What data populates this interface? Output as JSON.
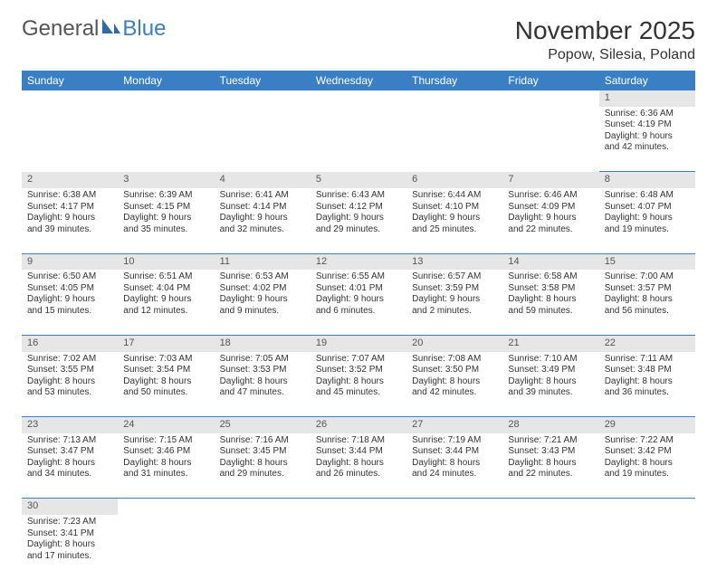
{
  "logo": {
    "part1": "General",
    "part2": "Blue"
  },
  "title": "November 2025",
  "location": "Popow, Silesia, Poland",
  "header_color": "#3a7fc4",
  "daynum_bg": "#e6e6e6",
  "days": [
    "Sunday",
    "Monday",
    "Tuesday",
    "Wednesday",
    "Thursday",
    "Friday",
    "Saturday"
  ],
  "weeks": [
    [
      null,
      null,
      null,
      null,
      null,
      null,
      {
        "d": "1",
        "sr": "Sunrise: 6:36 AM",
        "ss": "Sunset: 4:19 PM",
        "dl1": "Daylight: 9 hours",
        "dl2": "and 42 minutes."
      }
    ],
    [
      {
        "d": "2",
        "sr": "Sunrise: 6:38 AM",
        "ss": "Sunset: 4:17 PM",
        "dl1": "Daylight: 9 hours",
        "dl2": "and 39 minutes."
      },
      {
        "d": "3",
        "sr": "Sunrise: 6:39 AM",
        "ss": "Sunset: 4:15 PM",
        "dl1": "Daylight: 9 hours",
        "dl2": "and 35 minutes."
      },
      {
        "d": "4",
        "sr": "Sunrise: 6:41 AM",
        "ss": "Sunset: 4:14 PM",
        "dl1": "Daylight: 9 hours",
        "dl2": "and 32 minutes."
      },
      {
        "d": "5",
        "sr": "Sunrise: 6:43 AM",
        "ss": "Sunset: 4:12 PM",
        "dl1": "Daylight: 9 hours",
        "dl2": "and 29 minutes."
      },
      {
        "d": "6",
        "sr": "Sunrise: 6:44 AM",
        "ss": "Sunset: 4:10 PM",
        "dl1": "Daylight: 9 hours",
        "dl2": "and 25 minutes."
      },
      {
        "d": "7",
        "sr": "Sunrise: 6:46 AM",
        "ss": "Sunset: 4:09 PM",
        "dl1": "Daylight: 9 hours",
        "dl2": "and 22 minutes."
      },
      {
        "d": "8",
        "sr": "Sunrise: 6:48 AM",
        "ss": "Sunset: 4:07 PM",
        "dl1": "Daylight: 9 hours",
        "dl2": "and 19 minutes."
      }
    ],
    [
      {
        "d": "9",
        "sr": "Sunrise: 6:50 AM",
        "ss": "Sunset: 4:05 PM",
        "dl1": "Daylight: 9 hours",
        "dl2": "and 15 minutes."
      },
      {
        "d": "10",
        "sr": "Sunrise: 6:51 AM",
        "ss": "Sunset: 4:04 PM",
        "dl1": "Daylight: 9 hours",
        "dl2": "and 12 minutes."
      },
      {
        "d": "11",
        "sr": "Sunrise: 6:53 AM",
        "ss": "Sunset: 4:02 PM",
        "dl1": "Daylight: 9 hours",
        "dl2": "and 9 minutes."
      },
      {
        "d": "12",
        "sr": "Sunrise: 6:55 AM",
        "ss": "Sunset: 4:01 PM",
        "dl1": "Daylight: 9 hours",
        "dl2": "and 6 minutes."
      },
      {
        "d": "13",
        "sr": "Sunrise: 6:57 AM",
        "ss": "Sunset: 3:59 PM",
        "dl1": "Daylight: 9 hours",
        "dl2": "and 2 minutes."
      },
      {
        "d": "14",
        "sr": "Sunrise: 6:58 AM",
        "ss": "Sunset: 3:58 PM",
        "dl1": "Daylight: 8 hours",
        "dl2": "and 59 minutes."
      },
      {
        "d": "15",
        "sr": "Sunrise: 7:00 AM",
        "ss": "Sunset: 3:57 PM",
        "dl1": "Daylight: 8 hours",
        "dl2": "and 56 minutes."
      }
    ],
    [
      {
        "d": "16",
        "sr": "Sunrise: 7:02 AM",
        "ss": "Sunset: 3:55 PM",
        "dl1": "Daylight: 8 hours",
        "dl2": "and 53 minutes."
      },
      {
        "d": "17",
        "sr": "Sunrise: 7:03 AM",
        "ss": "Sunset: 3:54 PM",
        "dl1": "Daylight: 8 hours",
        "dl2": "and 50 minutes."
      },
      {
        "d": "18",
        "sr": "Sunrise: 7:05 AM",
        "ss": "Sunset: 3:53 PM",
        "dl1": "Daylight: 8 hours",
        "dl2": "and 47 minutes."
      },
      {
        "d": "19",
        "sr": "Sunrise: 7:07 AM",
        "ss": "Sunset: 3:52 PM",
        "dl1": "Daylight: 8 hours",
        "dl2": "and 45 minutes."
      },
      {
        "d": "20",
        "sr": "Sunrise: 7:08 AM",
        "ss": "Sunset: 3:50 PM",
        "dl1": "Daylight: 8 hours",
        "dl2": "and 42 minutes."
      },
      {
        "d": "21",
        "sr": "Sunrise: 7:10 AM",
        "ss": "Sunset: 3:49 PM",
        "dl1": "Daylight: 8 hours",
        "dl2": "and 39 minutes."
      },
      {
        "d": "22",
        "sr": "Sunrise: 7:11 AM",
        "ss": "Sunset: 3:48 PM",
        "dl1": "Daylight: 8 hours",
        "dl2": "and 36 minutes."
      }
    ],
    [
      {
        "d": "23",
        "sr": "Sunrise: 7:13 AM",
        "ss": "Sunset: 3:47 PM",
        "dl1": "Daylight: 8 hours",
        "dl2": "and 34 minutes."
      },
      {
        "d": "24",
        "sr": "Sunrise: 7:15 AM",
        "ss": "Sunset: 3:46 PM",
        "dl1": "Daylight: 8 hours",
        "dl2": "and 31 minutes."
      },
      {
        "d": "25",
        "sr": "Sunrise: 7:16 AM",
        "ss": "Sunset: 3:45 PM",
        "dl1": "Daylight: 8 hours",
        "dl2": "and 29 minutes."
      },
      {
        "d": "26",
        "sr": "Sunrise: 7:18 AM",
        "ss": "Sunset: 3:44 PM",
        "dl1": "Daylight: 8 hours",
        "dl2": "and 26 minutes."
      },
      {
        "d": "27",
        "sr": "Sunrise: 7:19 AM",
        "ss": "Sunset: 3:44 PM",
        "dl1": "Daylight: 8 hours",
        "dl2": "and 24 minutes."
      },
      {
        "d": "28",
        "sr": "Sunrise: 7:21 AM",
        "ss": "Sunset: 3:43 PM",
        "dl1": "Daylight: 8 hours",
        "dl2": "and 22 minutes."
      },
      {
        "d": "29",
        "sr": "Sunrise: 7:22 AM",
        "ss": "Sunset: 3:42 PM",
        "dl1": "Daylight: 8 hours",
        "dl2": "and 19 minutes."
      }
    ],
    [
      {
        "d": "30",
        "sr": "Sunrise: 7:23 AM",
        "ss": "Sunset: 3:41 PM",
        "dl1": "Daylight: 8 hours",
        "dl2": "and 17 minutes."
      },
      null,
      null,
      null,
      null,
      null,
      null
    ]
  ]
}
